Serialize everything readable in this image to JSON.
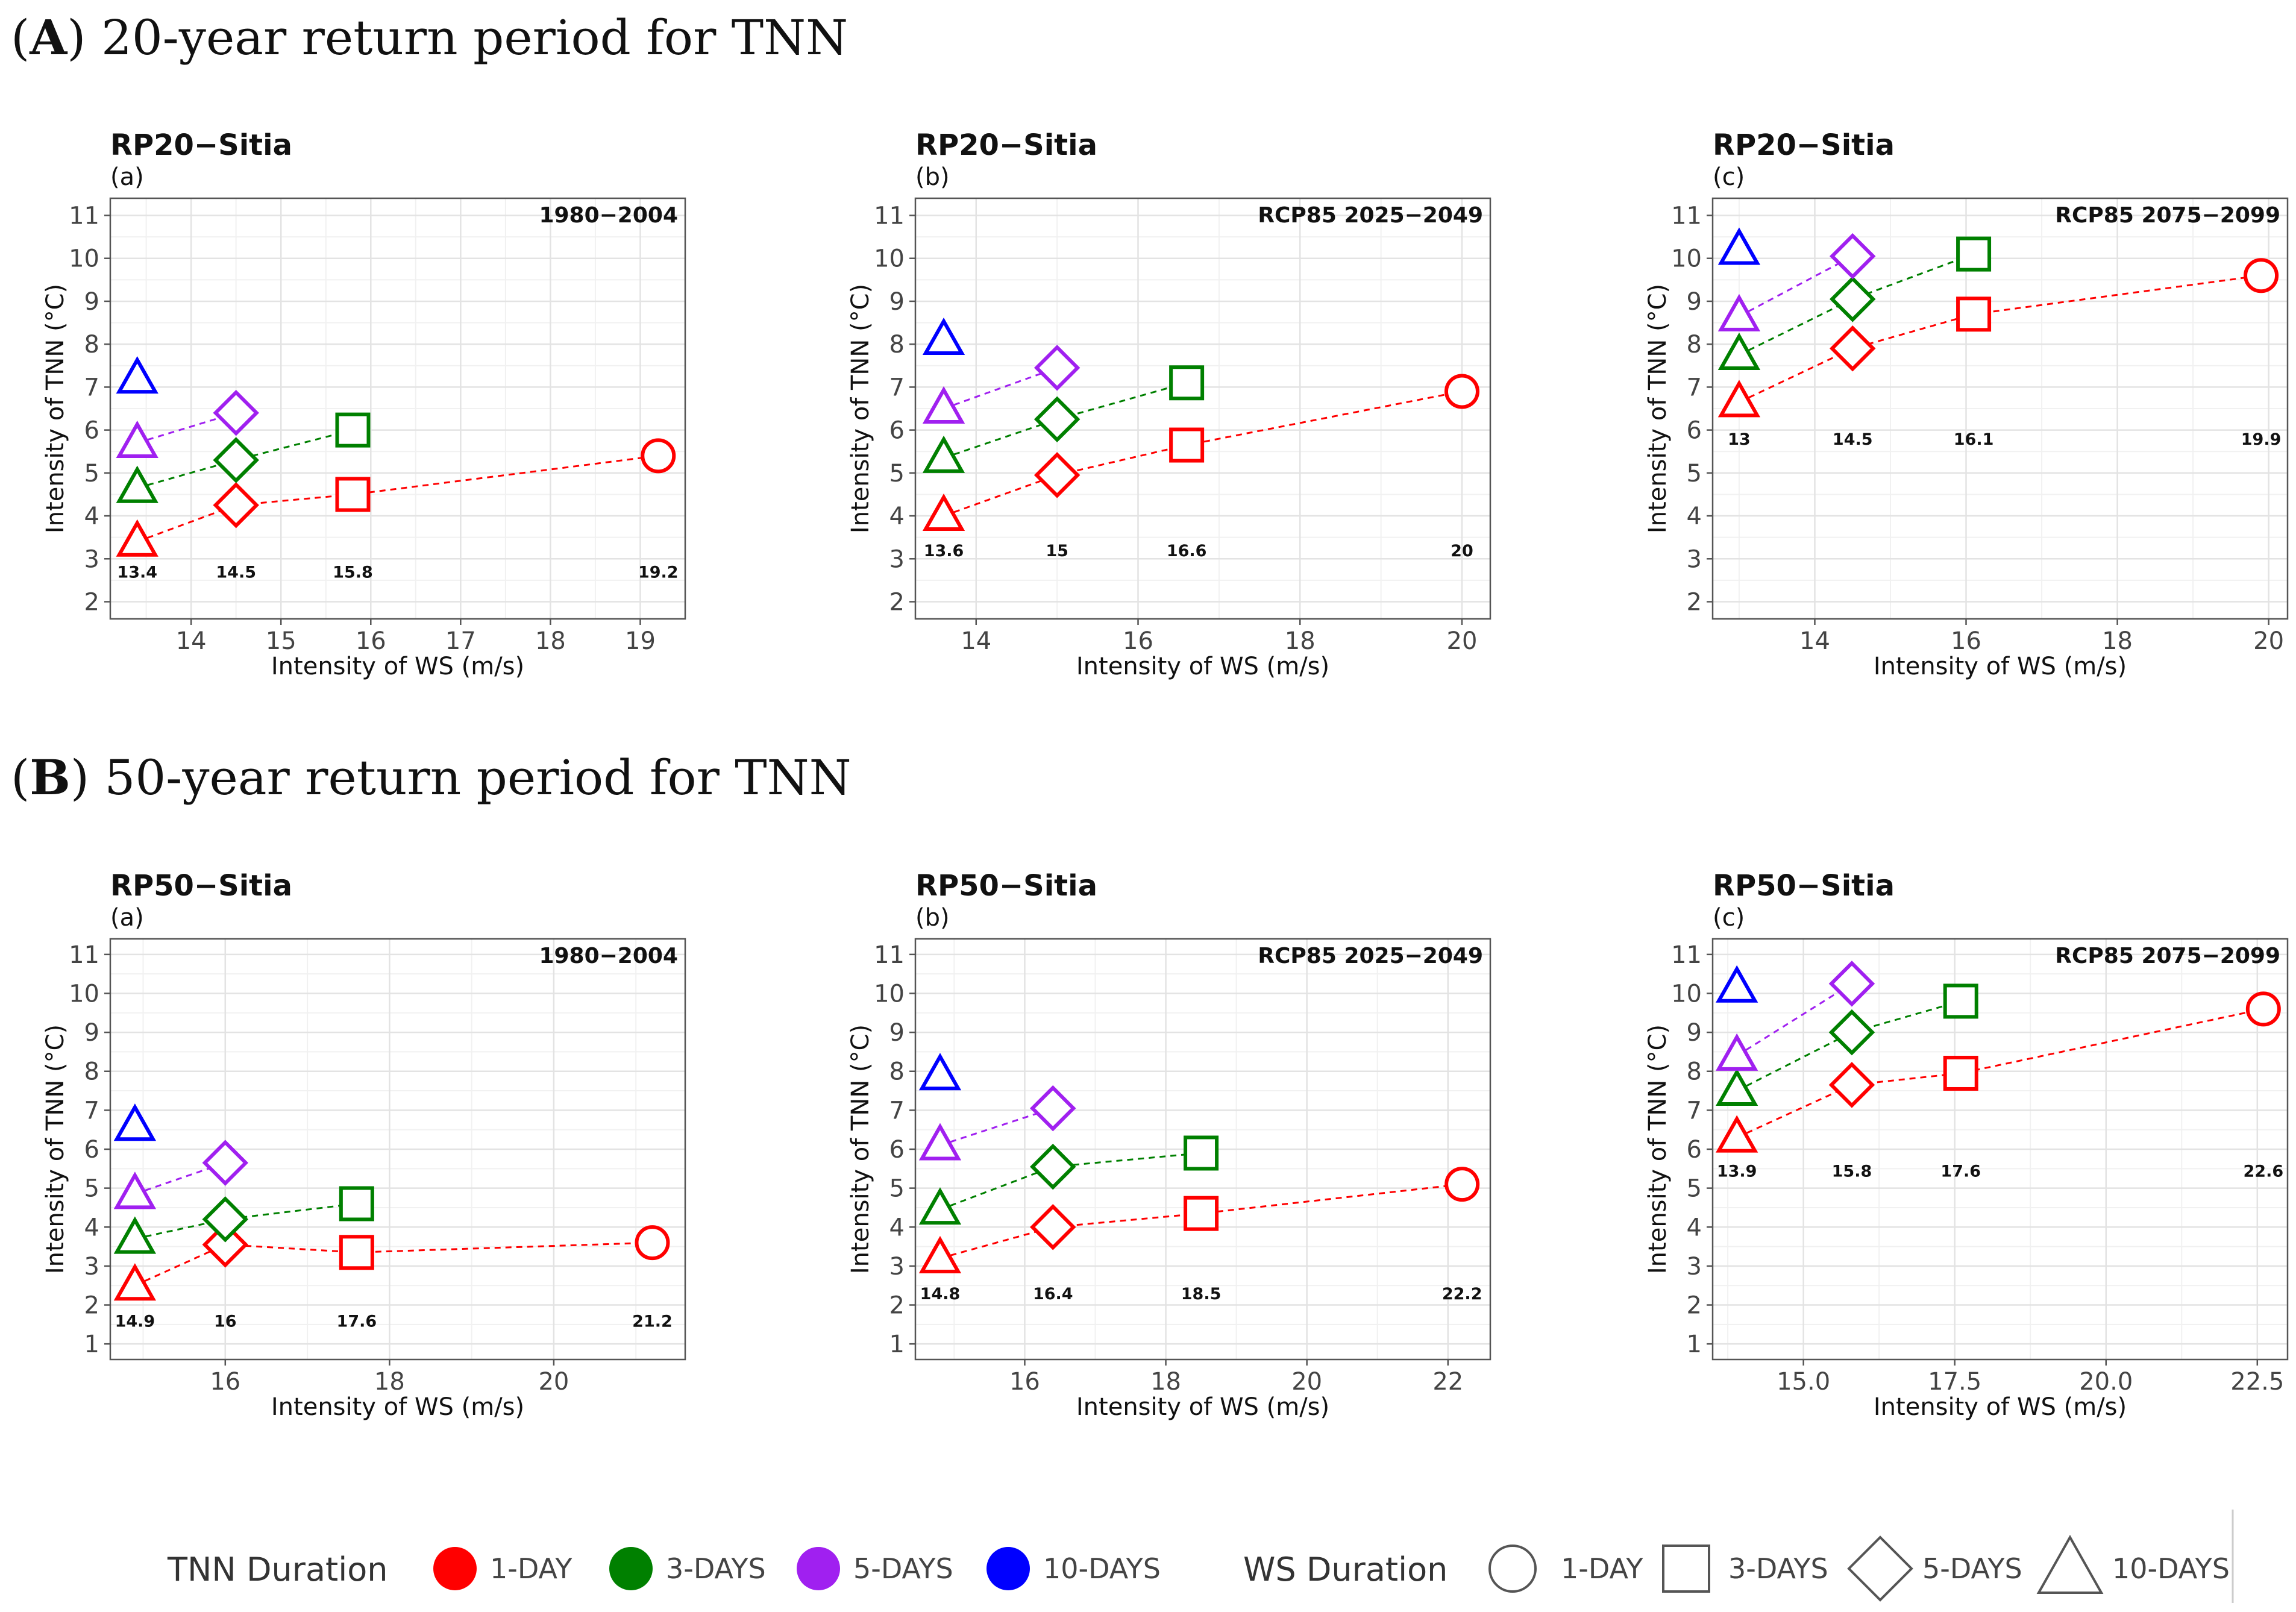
{
  "sections": [
    {
      "letter": "A",
      "title": "20-year return period for TNN"
    },
    {
      "letter": "B",
      "title": "50-year return period for TNN"
    }
  ],
  "legend": {
    "tnn_title": "TNN Duration",
    "ws_title": "WS Duration",
    "tnn_items": [
      {
        "label": "1-DAY",
        "color": "#ff0000"
      },
      {
        "label": "3-DAYS",
        "color": "#008000"
      },
      {
        "label": "5-DAYS",
        "color": "#a020f0"
      },
      {
        "label": "10-DAYS",
        "color": "#0000ff"
      }
    ],
    "ws_items": [
      {
        "label": "1-DAY",
        "shape": "circle"
      },
      {
        "label": "3-DAYS",
        "shape": "square"
      },
      {
        "label": "5-DAYS",
        "shape": "diamond"
      },
      {
        "label": "10-DAYS",
        "shape": "triangle"
      }
    ]
  },
  "series_colors": {
    "1-DAY": "#ff0000",
    "3-DAYS": "#008000",
    "5-DAYS": "#a020f0",
    "10-DAYS": "#0000ff"
  },
  "chart_data": [
    {
      "type": "scatter",
      "title": "RP20−Sitia",
      "subtitle": "(a)",
      "period": "1980−2004",
      "xlabel": "Intensity of WS (m/s)",
      "ylabel": "Intensity of TNN (°C)",
      "xlim": [
        13.1,
        19.5
      ],
      "ylim": [
        1.6,
        11.4
      ],
      "xticks": [
        "14",
        "15",
        "16",
        "17",
        "18",
        "19"
      ],
      "yticks": [
        "2",
        "3",
        "4",
        "5",
        "6",
        "7",
        "8",
        "9",
        "10",
        "11"
      ],
      "ws_labels": [
        "13.4",
        "14.5",
        "15.8",
        "19.2"
      ],
      "ws_label_y": 2.7,
      "series": [
        {
          "name": "1-DAY",
          "x": [
            13.4,
            14.5,
            15.8,
            19.2
          ],
          "y": [
            3.4,
            4.25,
            4.5,
            5.4
          ],
          "shapes": [
            "triangle",
            "diamond",
            "square",
            "circle"
          ]
        },
        {
          "name": "3-DAYS",
          "x": [
            13.4,
            14.5,
            15.8
          ],
          "y": [
            4.65,
            5.3,
            6.0
          ],
          "shapes": [
            "triangle",
            "diamond",
            "square"
          ]
        },
        {
          "name": "5-DAYS",
          "x": [
            13.4,
            14.5
          ],
          "y": [
            5.7,
            6.4
          ],
          "shapes": [
            "triangle",
            "diamond"
          ]
        },
        {
          "name": "10-DAYS",
          "x": [
            13.4
          ],
          "y": [
            7.2
          ],
          "shapes": [
            "triangle"
          ]
        }
      ]
    },
    {
      "type": "scatter",
      "title": "RP20−Sitia",
      "subtitle": "(b)",
      "period": "RCP85 2025−2049",
      "xlabel": "Intensity of WS (m/s)",
      "ylabel": "Intensity of TNN (°C)",
      "xlim": [
        13.25,
        20.35
      ],
      "ylim": [
        1.6,
        11.4
      ],
      "xticks": [
        "14",
        "16",
        "18",
        "20"
      ],
      "yticks": [
        "2",
        "3",
        "4",
        "5",
        "6",
        "7",
        "8",
        "9",
        "10",
        "11"
      ],
      "ws_labels": [
        "13.6",
        "15",
        "16.6",
        "20"
      ],
      "ws_label_y": 3.2,
      "series": [
        {
          "name": "1-DAY",
          "x": [
            13.6,
            15.0,
            16.6,
            20.0
          ],
          "y": [
            4.0,
            4.95,
            5.65,
            6.9
          ],
          "shapes": [
            "triangle",
            "diamond",
            "square",
            "circle"
          ]
        },
        {
          "name": "3-DAYS",
          "x": [
            13.6,
            15.0,
            16.6
          ],
          "y": [
            5.35,
            6.25,
            7.1
          ],
          "shapes": [
            "triangle",
            "diamond",
            "square"
          ]
        },
        {
          "name": "5-DAYS",
          "x": [
            13.6,
            15.0
          ],
          "y": [
            6.5,
            7.45
          ],
          "shapes": [
            "triangle",
            "diamond"
          ]
        },
        {
          "name": "10-DAYS",
          "x": [
            13.6
          ],
          "y": [
            8.1
          ],
          "shapes": [
            "triangle"
          ]
        }
      ]
    },
    {
      "type": "scatter",
      "title": "RP20−Sitia",
      "subtitle": "(c)",
      "period": "RCP85 2075−2099",
      "xlabel": "Intensity of WS (m/s)",
      "ylabel": "Intensity of TNN (°C)",
      "xlim": [
        12.65,
        20.25
      ],
      "ylim": [
        1.6,
        11.4
      ],
      "xticks": [
        "14",
        "16",
        "18",
        "20"
      ],
      "yticks": [
        "2",
        "3",
        "4",
        "5",
        "6",
        "7",
        "8",
        "9",
        "10",
        "11"
      ],
      "ws_labels": [
        "13",
        "14.5",
        "16.1",
        "19.9"
      ],
      "ws_label_y": 5.8,
      "series": [
        {
          "name": "1-DAY",
          "x": [
            13.0,
            14.5,
            16.1,
            19.9
          ],
          "y": [
            6.65,
            7.9,
            8.7,
            9.6
          ],
          "shapes": [
            "triangle",
            "diamond",
            "square",
            "circle"
          ]
        },
        {
          "name": "3-DAYS",
          "x": [
            13.0,
            14.5,
            16.1
          ],
          "y": [
            7.75,
            9.05,
            10.1
          ],
          "shapes": [
            "triangle",
            "diamond",
            "square"
          ]
        },
        {
          "name": "5-DAYS",
          "x": [
            13.0,
            14.5
          ],
          "y": [
            8.65,
            10.05
          ],
          "shapes": [
            "triangle",
            "diamond"
          ]
        },
        {
          "name": "10-DAYS",
          "x": [
            13.0
          ],
          "y": [
            10.2
          ],
          "shapes": [
            "triangle"
          ]
        }
      ]
    },
    {
      "type": "scatter",
      "title": "RP50−Sitia",
      "subtitle": "(a)",
      "period": "1980−2004",
      "xlabel": "Intensity of WS (m/s)",
      "ylabel": "Intensity of TNN (°C)",
      "xlim": [
        14.6,
        21.6
      ],
      "ylim": [
        0.6,
        11.4
      ],
      "xticks": [
        "16",
        "18",
        "20"
      ],
      "yticks": [
        "1",
        "2",
        "3",
        "4",
        "5",
        "6",
        "7",
        "8",
        "9",
        "10",
        "11"
      ],
      "ws_labels": [
        "14.9",
        "16",
        "17.6",
        "21.2"
      ],
      "ws_label_y": 1.6,
      "series": [
        {
          "name": "1-DAY",
          "x": [
            14.9,
            16.0,
            17.6,
            21.2
          ],
          "y": [
            2.5,
            3.55,
            3.35,
            3.6
          ],
          "shapes": [
            "triangle",
            "diamond",
            "square",
            "circle"
          ]
        },
        {
          "name": "3-DAYS",
          "x": [
            14.9,
            16.0,
            17.6
          ],
          "y": [
            3.7,
            4.2,
            4.6
          ],
          "shapes": [
            "triangle",
            "diamond",
            "square"
          ]
        },
        {
          "name": "5-DAYS",
          "x": [
            14.9,
            16.0
          ],
          "y": [
            4.85,
            5.65
          ],
          "shapes": [
            "triangle",
            "diamond"
          ]
        },
        {
          "name": "10-DAYS",
          "x": [
            14.9
          ],
          "y": [
            6.6
          ],
          "shapes": [
            "triangle"
          ]
        }
      ]
    },
    {
      "type": "scatter",
      "title": "RP50−Sitia",
      "subtitle": "(b)",
      "period": "RCP85 2025−2049",
      "xlabel": "Intensity of WS (m/s)",
      "ylabel": "Intensity of TNN (°C)",
      "xlim": [
        14.45,
        22.6
      ],
      "ylim": [
        0.6,
        11.4
      ],
      "xticks": [
        "16",
        "18",
        "20",
        "22"
      ],
      "yticks": [
        "1",
        "2",
        "3",
        "4",
        "5",
        "6",
        "7",
        "8",
        "9",
        "10",
        "11"
      ],
      "ws_labels": [
        "14.8",
        "16.4",
        "18.5",
        "22.2"
      ],
      "ws_label_y": 2.3,
      "series": [
        {
          "name": "1-DAY",
          "x": [
            14.8,
            16.4,
            18.5,
            22.2
          ],
          "y": [
            3.2,
            4.0,
            4.35,
            5.1
          ],
          "shapes": [
            "triangle",
            "diamond",
            "square",
            "circle"
          ]
        },
        {
          "name": "3-DAYS",
          "x": [
            14.8,
            16.4,
            18.5
          ],
          "y": [
            4.45,
            5.55,
            5.9
          ],
          "shapes": [
            "triangle",
            "diamond",
            "square"
          ]
        },
        {
          "name": "5-DAYS",
          "x": [
            14.8,
            16.4
          ],
          "y": [
            6.1,
            7.05
          ],
          "shapes": [
            "triangle",
            "diamond"
          ]
        },
        {
          "name": "10-DAYS",
          "x": [
            14.8
          ],
          "y": [
            7.9
          ],
          "shapes": [
            "triangle"
          ]
        }
      ]
    },
    {
      "type": "scatter",
      "title": "RP50−Sitia",
      "subtitle": "(c)",
      "period": "RCP85 2075−2099",
      "xlabel": "Intensity of WS (m/s)",
      "ylabel": "Intensity of TNN (°C)",
      "xlim": [
        13.5,
        23.0
      ],
      "ylim": [
        0.6,
        11.4
      ],
      "xticks": [
        "15.0",
        "17.5",
        "20.0",
        "22.5"
      ],
      "yticks": [
        "1",
        "2",
        "3",
        "4",
        "5",
        "6",
        "7",
        "8",
        "9",
        "10",
        "11"
      ],
      "ws_labels": [
        "13.9",
        "15.8",
        "17.6",
        "22.6"
      ],
      "ws_label_y": 5.45,
      "series": [
        {
          "name": "1-DAY",
          "x": [
            13.9,
            15.8,
            17.6,
            22.6
          ],
          "y": [
            6.3,
            7.65,
            7.95,
            9.6
          ],
          "shapes": [
            "triangle",
            "diamond",
            "square",
            "circle"
          ]
        },
        {
          "name": "3-DAYS",
          "x": [
            13.9,
            15.8,
            17.6
          ],
          "y": [
            7.5,
            9.0,
            9.8
          ],
          "shapes": [
            "triangle",
            "diamond",
            "square"
          ]
        },
        {
          "name": "5-DAYS",
          "x": [
            13.9,
            15.8
          ],
          "y": [
            8.4,
            10.25
          ],
          "shapes": [
            "triangle",
            "diamond"
          ]
        },
        {
          "name": "10-DAYS",
          "x": [
            13.9
          ],
          "y": [
            10.15
          ],
          "shapes": [
            "triangle"
          ]
        }
      ]
    }
  ]
}
